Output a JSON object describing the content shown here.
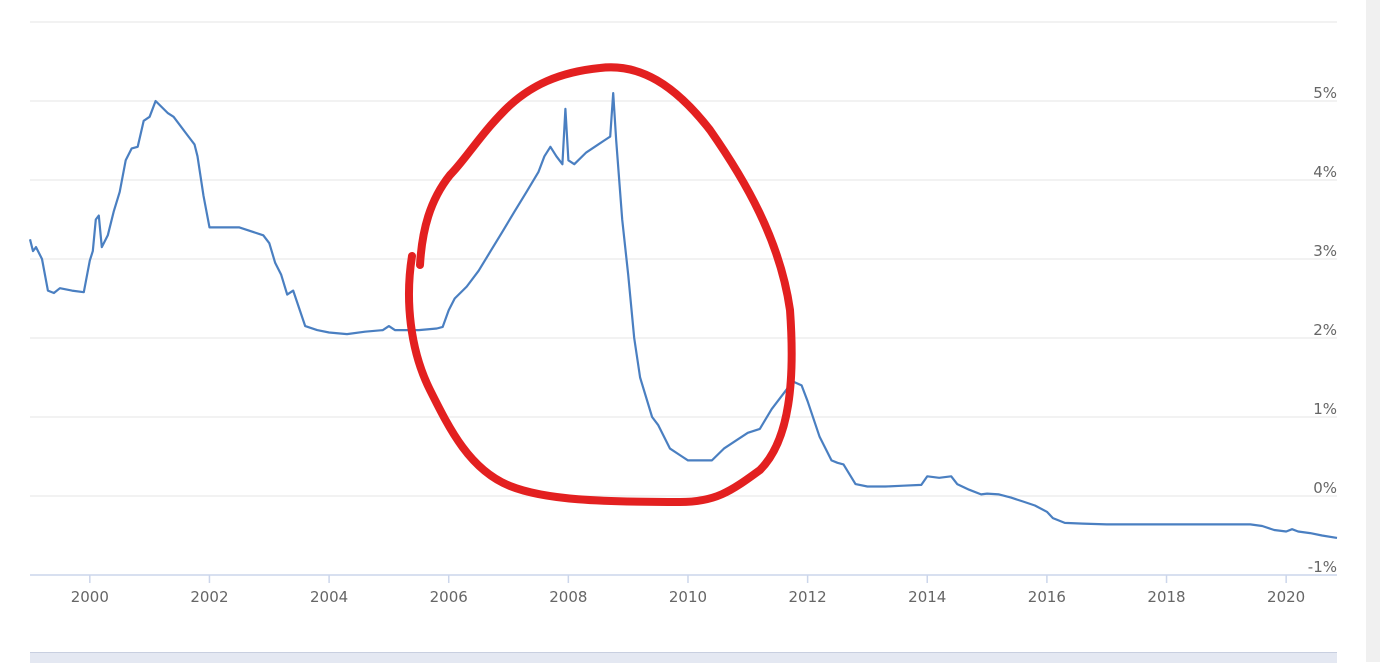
{
  "chart_data": {
    "type": "line",
    "title": "",
    "xlabel": "",
    "ylabel": "",
    "xlim": [
      1999.0,
      2020.85
    ],
    "ylim": [
      -1,
      6
    ],
    "x_ticks": [
      "2000",
      "2002",
      "2004",
      "2006",
      "2008",
      "2010",
      "2012",
      "2014",
      "2016",
      "2018",
      "2020"
    ],
    "y_ticks": [
      "-1%",
      "0%",
      "1%",
      "2%",
      "3%",
      "4%",
      "5%"
    ],
    "grid": true,
    "legend": "none",
    "series_color": "#4a7fc1",
    "annotation_color": "#e32020",
    "annotation": "hand-drawn red circle around 2005-2012",
    "series": [
      {
        "x": [
          1999.0,
          1999.05,
          1999.1,
          1999.2,
          1999.3,
          1999.4,
          1999.5,
          1999.7,
          1999.9,
          2000.0,
          2000.05,
          2000.1,
          2000.15,
          2000.2,
          2000.3,
          2000.4,
          2000.5,
          2000.6,
          2000.7,
          2000.8,
          2000.9,
          2001.0,
          2001.1,
          2001.3,
          2001.4,
          2001.6,
          2001.7,
          2001.75,
          2001.8,
          2001.9,
          2002.0,
          2002.5,
          2002.9,
          2003.0,
          2003.1,
          2003.2,
          2003.3,
          2003.4,
          2003.6,
          2003.8,
          2004.0,
          2004.3,
          2004.6,
          2004.9,
          2005.0,
          2005.1,
          2005.5,
          2005.8,
          2005.9,
          2006.0,
          2006.1,
          2006.3,
          2006.5,
          2006.7,
          2006.9,
          2007.1,
          2007.3,
          2007.5,
          2007.6,
          2007.7,
          2007.8,
          2007.9,
          2007.95,
          2008.0,
          2008.1,
          2008.3,
          2008.5,
          2008.6,
          2008.7,
          2008.75,
          2008.8,
          2008.85,
          2008.9,
          2009.0,
          2009.1,
          2009.2,
          2009.4,
          2009.5,
          2009.7,
          2009.9,
          2010.0,
          2010.2,
          2010.4,
          2010.6,
          2010.8,
          2011.0,
          2011.2,
          2011.4,
          2011.6,
          2011.75,
          2011.9,
          2012.0,
          2012.2,
          2012.4,
          2012.5,
          2012.6,
          2012.8,
          2013.0,
          2013.3,
          2013.6,
          2013.9,
          2014.0,
          2014.2,
          2014.4,
          2014.5,
          2014.7,
          2014.9,
          2015.0,
          2015.2,
          2015.4,
          2015.6,
          2015.8,
          2016.0,
          2016.1,
          2016.3,
          2016.6,
          2017.0,
          2017.5,
          2018.0,
          2018.5,
          2019.0,
          2019.4,
          2019.6,
          2019.8,
          2020.0,
          2020.1,
          2020.2,
          2020.4,
          2020.6,
          2020.85
        ],
        "y": [
          3.25,
          3.1,
          3.15,
          3.0,
          2.6,
          2.57,
          2.63,
          2.6,
          2.58,
          2.98,
          3.1,
          3.5,
          3.55,
          3.15,
          3.3,
          3.6,
          3.85,
          4.25,
          4.4,
          4.42,
          4.75,
          4.8,
          5.0,
          4.85,
          4.8,
          4.6,
          4.5,
          4.45,
          4.3,
          3.8,
          3.4,
          3.4,
          3.3,
          3.2,
          2.95,
          2.8,
          2.55,
          2.6,
          2.15,
          2.1,
          2.07,
          2.05,
          2.08,
          2.1,
          2.15,
          2.1,
          2.1,
          2.12,
          2.14,
          2.35,
          2.5,
          2.65,
          2.85,
          3.1,
          3.35,
          3.6,
          3.85,
          4.1,
          4.3,
          4.42,
          4.3,
          4.2,
          4.9,
          4.25,
          4.2,
          4.35,
          4.45,
          4.5,
          4.55,
          5.1,
          4.5,
          4.0,
          3.5,
          2.8,
          2.0,
          1.5,
          1.0,
          0.9,
          0.6,
          0.5,
          0.45,
          0.45,
          0.45,
          0.6,
          0.7,
          0.8,
          0.85,
          1.1,
          1.3,
          1.45,
          1.4,
          1.2,
          0.75,
          0.45,
          0.42,
          0.4,
          0.15,
          0.12,
          0.12,
          0.13,
          0.14,
          0.25,
          0.23,
          0.25,
          0.15,
          0.08,
          0.02,
          0.03,
          0.02,
          -0.02,
          -0.07,
          -0.12,
          -0.2,
          -0.28,
          -0.34,
          -0.35,
          -0.36,
          -0.36,
          -0.36,
          -0.36,
          -0.36,
          -0.36,
          -0.38,
          -0.43,
          -0.45,
          -0.42,
          -0.45,
          -0.47,
          -0.5,
          -0.53
        ]
      }
    ]
  }
}
